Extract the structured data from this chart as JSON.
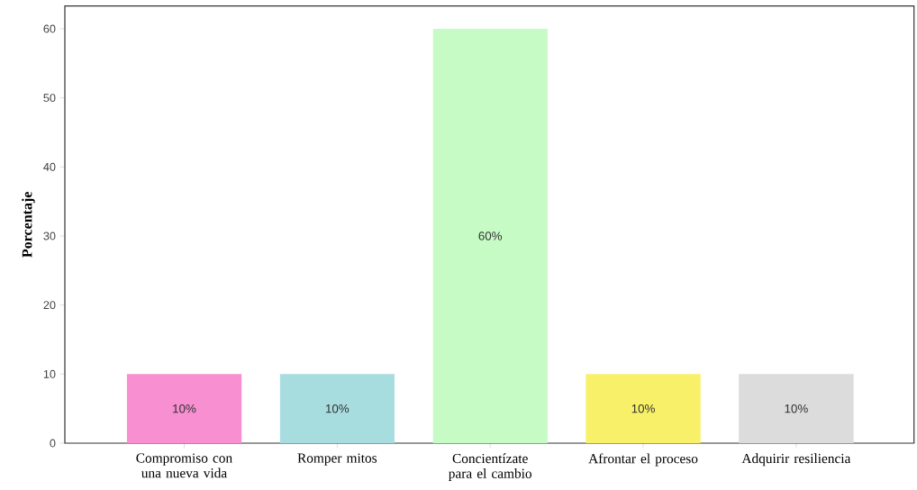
{
  "chart_data": {
    "type": "bar",
    "ylabel": "Porcentaje",
    "categories": [
      "Compromiso con una nueva vida",
      "Romper mitos",
      "Concientízate para el cambio",
      "Afrontar el proceso",
      "Adquirir resiliencia"
    ],
    "values": [
      10,
      10,
      60,
      10,
      10
    ],
    "value_labels": [
      "10%",
      "10%",
      "60%",
      "10%",
      "10%"
    ],
    "colors": [
      "#f78fd0",
      "#a8dde0",
      "#c6fbc6",
      "#f9f06a",
      "#dcdcdc"
    ],
    "ylim": [
      0,
      63.3
    ],
    "yticks": [
      0,
      10,
      20,
      30,
      40,
      50,
      60
    ],
    "grid": false
  }
}
